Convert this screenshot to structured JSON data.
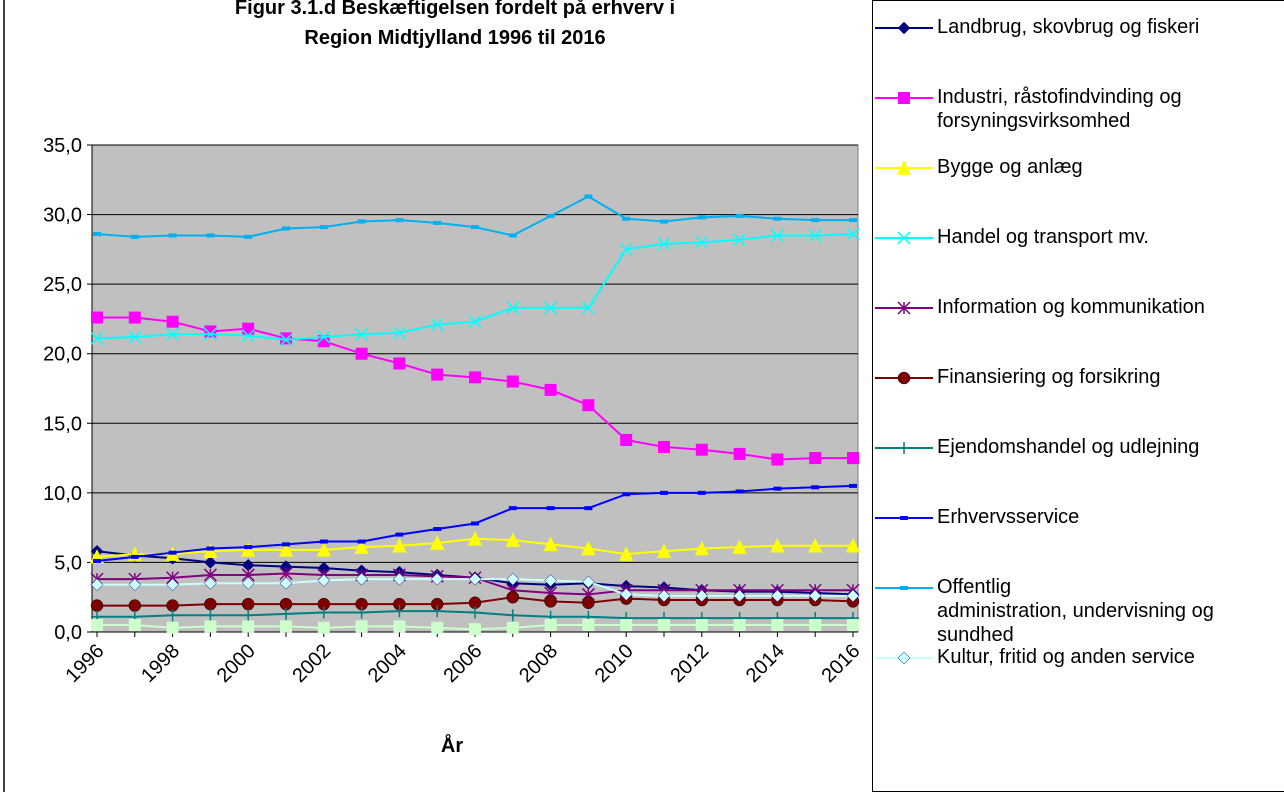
{
  "chart_data": {
    "type": "line",
    "title": "Figur 3.1.d Beskæftigelsen fordelt på erhverv i\nRegion Midtjylland 1996 til 2016",
    "x_label": "År",
    "categories": [
      "1996",
      null,
      "1998",
      null,
      "2000",
      null,
      "2002",
      null,
      "2004",
      null,
      "2006",
      null,
      "2008",
      null,
      "2010",
      null,
      "2012",
      null,
      "2014",
      null,
      "2016"
    ],
    "ylim": [
      0,
      35
    ],
    "yticks": [
      {
        "value": 0,
        "label": "0,0"
      },
      {
        "value": 5,
        "label": "5,0"
      },
      {
        "value": 10,
        "label": "10,0"
      },
      {
        "value": 15,
        "label": "15,0"
      },
      {
        "value": 20,
        "label": "20,0"
      },
      {
        "value": 25,
        "label": "25,0"
      },
      {
        "value": 30,
        "label": "30,0"
      },
      {
        "value": 35,
        "label": "35,0"
      }
    ],
    "grid": true,
    "legend": "right",
    "series": [
      {
        "name": "Landbrug, skovbrug og fiskeri",
        "color": "#000080",
        "marker": "diamond",
        "values": [
          5.8,
          5.5,
          5.3,
          5.0,
          4.8,
          4.7,
          4.6,
          4.4,
          4.3,
          4.1,
          3.9,
          3.5,
          3.4,
          3.5,
          3.3,
          3.2,
          3.0,
          2.9,
          2.9,
          2.8,
          2.7
        ]
      },
      {
        "name": "Industri, råstofindvinding og\nforsyningsvirksomhed",
        "color": "#ff00ff",
        "marker": "square",
        "values": [
          22.6,
          22.6,
          22.3,
          21.6,
          21.8,
          21.1,
          20.9,
          20.0,
          19.3,
          18.5,
          18.3,
          18.0,
          17.4,
          16.3,
          13.8,
          13.3,
          13.1,
          12.8,
          12.4,
          12.5,
          12.5
        ]
      },
      {
        "name": "Bygge og anlæg",
        "color": "#ffff00",
        "marker": "triangle",
        "values": [
          5.4,
          5.6,
          5.6,
          5.8,
          5.9,
          5.9,
          5.9,
          6.1,
          6.2,
          6.4,
          6.7,
          6.6,
          6.3,
          6.0,
          5.6,
          5.8,
          6.0,
          6.1,
          6.2,
          6.2,
          6.2
        ]
      },
      {
        "name": "Handel og transport mv.",
        "color": "#00ffff",
        "marker": "x",
        "values": [
          21.1,
          21.2,
          21.4,
          21.4,
          21.3,
          21.0,
          21.2,
          21.4,
          21.5,
          22.1,
          22.3,
          23.3,
          23.3,
          23.3,
          27.5,
          27.9,
          28.0,
          28.2,
          28.5,
          28.5,
          28.6
        ]
      },
      {
        "name": "Information og kommunikation",
        "color": "#800080",
        "marker": "star",
        "values": [
          3.8,
          3.8,
          3.9,
          4.1,
          4.1,
          4.2,
          4.1,
          4.1,
          4.1,
          4.0,
          3.9,
          3.0,
          2.8,
          2.7,
          3.0,
          3.0,
          3.0,
          3.0,
          3.0,
          3.0,
          3.0
        ]
      },
      {
        "name": "Finansiering og forsikring",
        "color": "#800000",
        "marker": "circle",
        "values": [
          1.9,
          1.9,
          1.9,
          2.0,
          2.0,
          2.0,
          2.0,
          2.0,
          2.0,
          2.0,
          2.1,
          2.5,
          2.2,
          2.1,
          2.4,
          2.3,
          2.3,
          2.3,
          2.3,
          2.3,
          2.2
        ]
      },
      {
        "name": "Ejendomshandel og udlejning",
        "color": "#008080",
        "marker": "plus",
        "values": [
          1.1,
          1.1,
          1.2,
          1.2,
          1.2,
          1.3,
          1.4,
          1.4,
          1.5,
          1.5,
          1.4,
          1.2,
          1.1,
          1.1,
          1.0,
          1.0,
          1.0,
          1.0,
          1.0,
          1.0,
          1.0
        ]
      },
      {
        "name": "Erhvervsservice",
        "color": "#0000ff",
        "marker": "dash",
        "values": [
          5.1,
          5.4,
          5.7,
          6.0,
          6.1,
          6.3,
          6.5,
          6.5,
          7.0,
          7.4,
          7.8,
          8.9,
          8.9,
          8.9,
          9.9,
          10.0,
          10.0,
          10.1,
          10.3,
          10.4,
          10.5
        ]
      },
      {
        "name": "Offentlig\nadministration, undervisning og\nsundhed",
        "color": "#00b0f0",
        "marker": "dash",
        "values": [
          28.6,
          28.4,
          28.5,
          28.5,
          28.4,
          29.0,
          29.1,
          29.5,
          29.6,
          29.4,
          29.1,
          28.5,
          29.9,
          31.3,
          29.7,
          29.5,
          29.8,
          29.9,
          29.7,
          29.6,
          29.6
        ]
      },
      {
        "name": "Kultur, fritid og anden service",
        "color": "#ccffff",
        "marker": "diamond",
        "values": [
          3.4,
          3.4,
          3.4,
          3.5,
          3.5,
          3.5,
          3.7,
          3.8,
          3.8,
          3.8,
          3.8,
          3.8,
          3.7,
          3.6,
          2.7,
          2.6,
          2.6,
          2.6,
          2.6,
          2.6,
          2.6
        ]
      },
      {
        "color": "#ccffcc",
        "marker": "square",
        "values": [
          0.5,
          0.5,
          0.3,
          0.4,
          0.4,
          0.4,
          0.3,
          0.4,
          0.4,
          0.3,
          0.2,
          0.3,
          0.5,
          0.5,
          0.5,
          0.5,
          0.5,
          0.5,
          0.5,
          0.5,
          0.5
        ]
      }
    ]
  }
}
